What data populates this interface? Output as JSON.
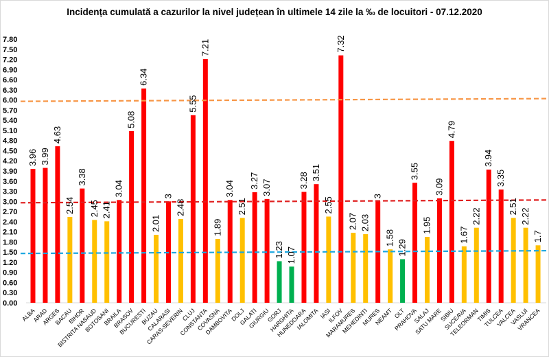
{
  "chart_data": {
    "type": "bar",
    "title": "Incidența cumulată a cazurilor la nivel județean în ultimele 14 zile la ‰ de locuitori - 07.12.2020",
    "xlabel": "",
    "ylabel": "",
    "ylim": [
      0,
      7.8
    ],
    "ytick_step": 0.3,
    "grid": false,
    "legend": "none",
    "categories": [
      "ALBA",
      "ARAD",
      "ARGES",
      "BACAU",
      "BIHOR",
      "BISTRITA NASAUD",
      "BOTOSANI",
      "BRAILA",
      "BRASOV",
      "BUCURESTI",
      "BUZAU",
      "CALARASI",
      "CARAS-SEVERIN",
      "CLUJ",
      "CONSTANTA",
      "COVASNA",
      "DAMBOVITA",
      "DOLJ",
      "GALATI",
      "GIURGIU",
      "GORJ",
      "HARGHITA",
      "HUNEDOARA",
      "IALOMITA",
      "IASI",
      "ILFOV",
      "MARAMURES",
      "MEHEDINTI",
      "MURES",
      "NEAMT",
      "OLT",
      "PRAHOVA",
      "SALAJ",
      "SATU MARE",
      "SIBIU",
      "SUCEAVA",
      "TELEORMAN",
      "TIMIS",
      "TULCEA",
      "VALCEA",
      "VASLUI",
      "VRANCEA"
    ],
    "values": [
      3.96,
      3.99,
      4.63,
      2.54,
      3.38,
      2.45,
      2.41,
      3.04,
      5.08,
      6.34,
      2.01,
      3,
      2.48,
      5.55,
      7.21,
      1.89,
      3.04,
      2.51,
      3.27,
      3.07,
      1.23,
      1.07,
      3.28,
      3.51,
      2.55,
      7.32,
      2.07,
      2.03,
      3,
      1.58,
      1.29,
      3.55,
      1.95,
      3.09,
      4.79,
      1.67,
      2.22,
      3.94,
      3.35,
      2.51,
      2.22,
      1.7
    ],
    "color_rules": {
      "red": {
        "min": 3.0,
        "color": "#ff0000"
      },
      "yellow": {
        "min": 1.5,
        "color": "#ffc000"
      },
      "green": {
        "color": "#00b050"
      }
    },
    "reference_lines": [
      {
        "value": 6.0,
        "color": "#f79646",
        "style": "dashed"
      },
      {
        "value": 3.0,
        "color": "#e02020",
        "style": "dashed"
      },
      {
        "value": 1.5,
        "color": "#1ca7e0",
        "style": "dashed"
      }
    ]
  }
}
